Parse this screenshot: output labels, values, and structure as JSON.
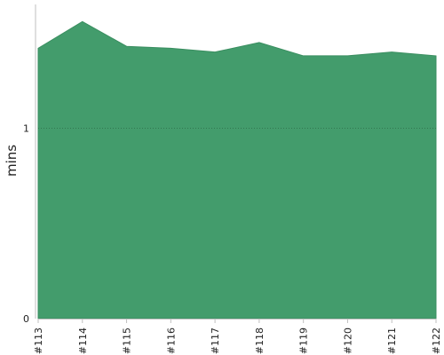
{
  "chart_data": {
    "type": "area",
    "title": "",
    "xlabel": "",
    "ylabel": "mins",
    "x": [
      "#113",
      "#114",
      "#115",
      "#116",
      "#117",
      "#118",
      "#119",
      "#120",
      "#121",
      "#122"
    ],
    "series": [
      {
        "values": [
          1.42,
          1.56,
          1.43,
          1.42,
          1.4,
          1.45,
          1.38,
          1.38,
          1.4,
          1.38
        ]
      }
    ],
    "ylim": [
      0,
      1.65
    ],
    "yticks": [
      0,
      1
    ],
    "ytick_labels": [
      "0",
      "1"
    ],
    "grid": {
      "y": true,
      "x": false,
      "style": "dotted"
    },
    "legend": "none",
    "colors": {
      "area_fill": "#439c6c",
      "area_stroke": "#3a8e60",
      "gridline": "#2f6e4a",
      "axis": "#bfbfbf",
      "text": "#222222"
    }
  }
}
